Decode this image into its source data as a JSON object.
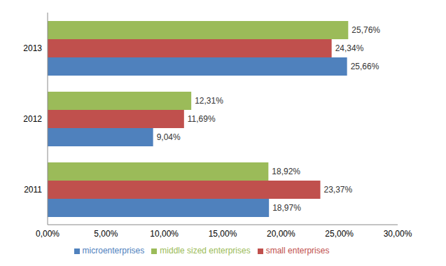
{
  "chart_data": {
    "type": "bar",
    "orientation": "horizontal",
    "categories": [
      "2011",
      "2012",
      "2013"
    ],
    "series": [
      {
        "name": "middle sized enterprises",
        "color": "#9bbb59",
        "values": [
          18.92,
          12.31,
          25.76
        ],
        "value_labels": [
          "18,92%",
          "12,31%",
          "25,76%"
        ]
      },
      {
        "name": "small enterprises",
        "color": "#c0504d",
        "values": [
          23.37,
          11.69,
          24.34
        ],
        "value_labels": [
          "23,37%",
          "11,69%",
          "24,34%"
        ]
      },
      {
        "name": "microenterprises",
        "color": "#4f81bd",
        "values": [
          18.97,
          9.04,
          25.66
        ],
        "value_labels": [
          "18,97%",
          "9,04%",
          "25,66%"
        ]
      }
    ],
    "xlim": [
      0,
      30
    ],
    "xticks": [
      {
        "value": 0,
        "label": "0,00%"
      },
      {
        "value": 5,
        "label": "5,00%"
      },
      {
        "value": 10,
        "label": "10,00%"
      },
      {
        "value": 15,
        "label": "15,00%"
      },
      {
        "value": 20,
        "label": "20,00%"
      },
      {
        "value": 25,
        "label": "25,00%"
      },
      {
        "value": 30,
        "label": "30,00%"
      }
    ],
    "data_labels": true,
    "legend": "bottom",
    "grid": false
  }
}
